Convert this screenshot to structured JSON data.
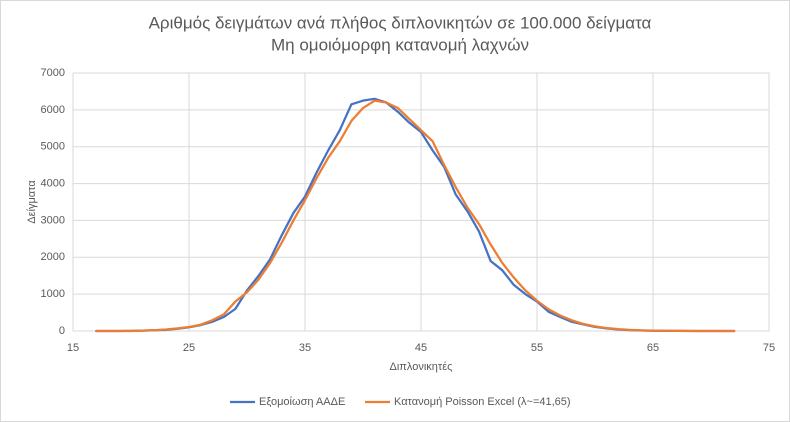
{
  "chart_data": {
    "type": "line",
    "title": "Αριθμός δειγμάτων ανά πλήθος διπλονικητών σε 100.000 δείγματα",
    "subtitle": "Μη ομοιόμορφη κατανομή λαχνών",
    "x_label": "Διπλονικητές",
    "y_label": "Δείγματα",
    "x": [
      17,
      18,
      19,
      20,
      21,
      22,
      23,
      24,
      25,
      26,
      27,
      28,
      29,
      30,
      31,
      32,
      33,
      34,
      35,
      36,
      37,
      38,
      39,
      40,
      41,
      42,
      43,
      44,
      45,
      46,
      47,
      48,
      49,
      50,
      51,
      52,
      53,
      54,
      55,
      56,
      57,
      58,
      59,
      60,
      61,
      62,
      63,
      64,
      65,
      66,
      67,
      68,
      69,
      70,
      71,
      72
    ],
    "series": [
      {
        "name": "Εξομοίωση ΑΑΔΕ",
        "color": "#4472c4",
        "values": [
          0,
          0,
          0,
          5,
          10,
          20,
          30,
          60,
          100,
          160,
          250,
          380,
          600,
          1100,
          1500,
          1950,
          2600,
          3200,
          3650,
          4300,
          4900,
          5450,
          6150,
          6250,
          6300,
          6200,
          5950,
          5650,
          5400,
          4900,
          4450,
          3700,
          3250,
          2700,
          1900,
          1650,
          1250,
          1000,
          800,
          520,
          380,
          250,
          180,
          110,
          70,
          40,
          25,
          15,
          8,
          5,
          2,
          1,
          0,
          0,
          0,
          0
        ]
      },
      {
        "name": "Κατανομή Poisson Excel (λ~=41,65)",
        "color": "#ed7d31",
        "values": [
          0,
          0,
          0,
          0,
          10,
          20,
          40,
          70,
          110,
          170,
          290,
          450,
          800,
          1050,
          1400,
          1850,
          2400,
          3000,
          3550,
          4150,
          4700,
          5150,
          5700,
          6050,
          6250,
          6200,
          6050,
          5750,
          5450,
          5150,
          4500,
          3900,
          3350,
          2900,
          2350,
          1850,
          1450,
          1100,
          820,
          590,
          420,
          290,
          190,
          125,
          80,
          50,
          30,
          18,
          10,
          6,
          3,
          2,
          1,
          0,
          0,
          0
        ]
      }
    ],
    "xlim": [
      15,
      75
    ],
    "xticks": [
      15,
      25,
      35,
      45,
      55,
      65,
      75
    ],
    "ylim": [
      0,
      7000
    ],
    "yticks": [
      0,
      1000,
      2000,
      3000,
      4000,
      5000,
      6000,
      7000
    ],
    "grid": true,
    "legend": "bottom"
  }
}
